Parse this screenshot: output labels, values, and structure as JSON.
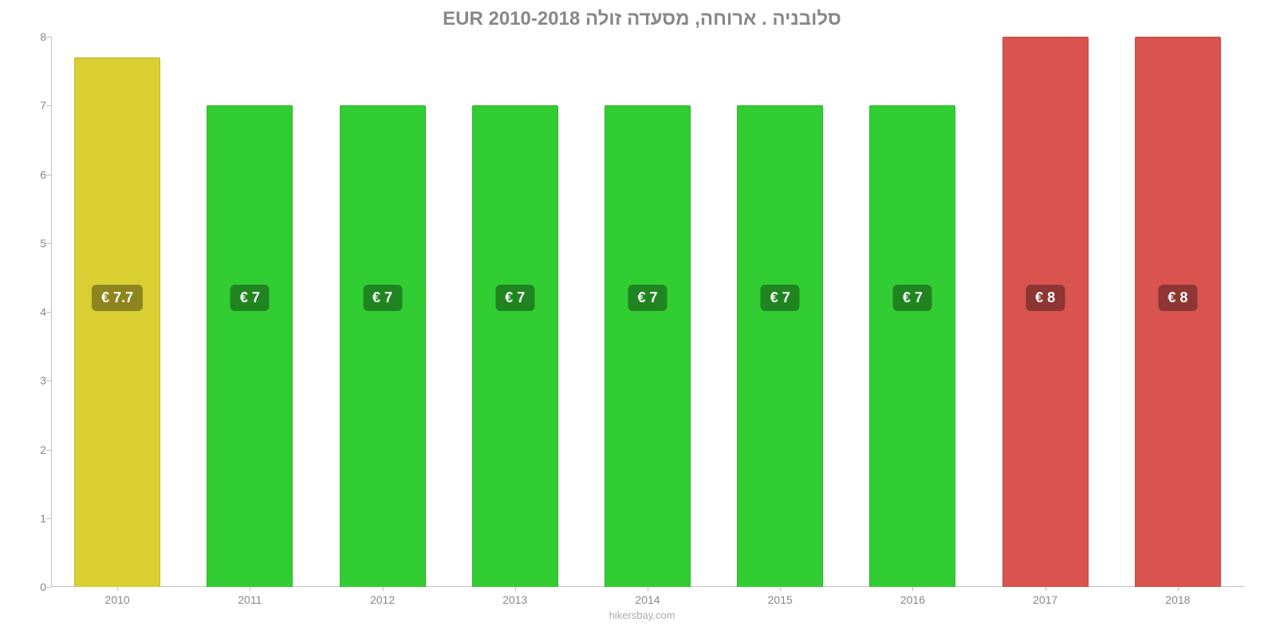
{
  "chart": {
    "type": "bar",
    "title": "סלובניה . ארוחה, מסעדה זולה EUR 2010-2018",
    "title_color": "#888888",
    "title_fontsize": 24,
    "background_color": "#ffffff",
    "axis_color": "#c0c0c0",
    "tick_label_color": "#888888",
    "tick_fontsize": 14,
    "ylim": [
      0,
      8
    ],
    "yticks": [
      0,
      1,
      2,
      3,
      4,
      5,
      6,
      7,
      8
    ],
    "categories": [
      "2010",
      "2011",
      "2012",
      "2013",
      "2014",
      "2015",
      "2016",
      "2017",
      "2018"
    ],
    "values": [
      7.7,
      7,
      7,
      7,
      7,
      7,
      7,
      8,
      8
    ],
    "bar_labels": [
      "€ 7.7",
      "€ 7",
      "€ 7",
      "€ 7",
      "€ 7",
      "€ 7",
      "€ 7",
      "€ 8",
      "€ 8"
    ],
    "bar_colors": [
      "#d9ce32",
      "#32cd32",
      "#32cd32",
      "#32cd32",
      "#32cd32",
      "#32cd32",
      "#32cd32",
      "#d9534f",
      "#d9534f"
    ],
    "bar_border_colors": [
      "#c2b92d",
      "#2db52d",
      "#2db52d",
      "#2db52d",
      "#2db52d",
      "#2db52d",
      "#2db52d",
      "#c34a46",
      "#c34a46"
    ],
    "bar_width_pct": 65,
    "label_bg": "rgba(0,0,0,0.35)",
    "label_color": "#ffffff",
    "label_fontsize": 18,
    "footer": "hikersbay.com",
    "footer_color": "#aaaaaa"
  }
}
